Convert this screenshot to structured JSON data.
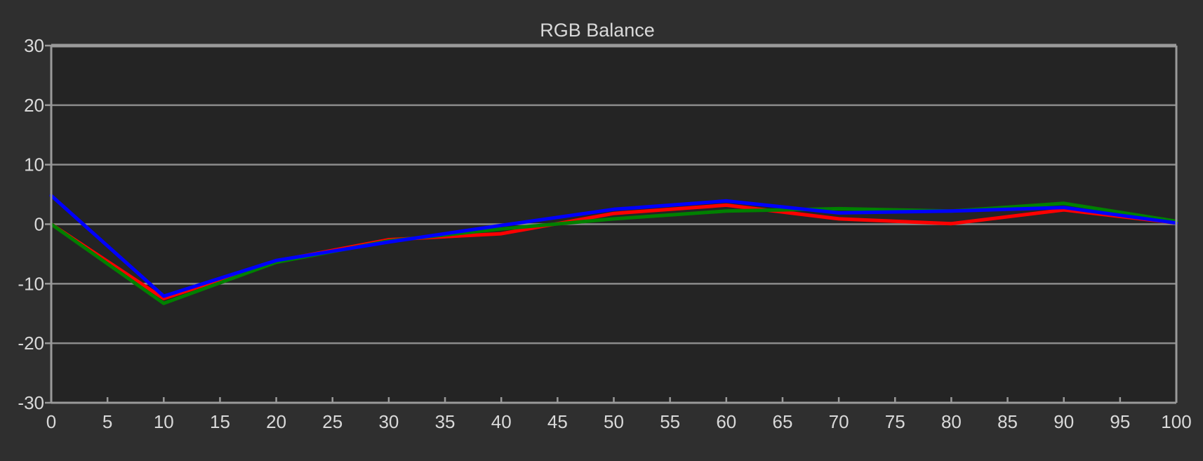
{
  "chart_data": {
    "type": "line",
    "title": "RGB Balance",
    "xlabel": "",
    "ylabel": "",
    "xlim": [
      0,
      100
    ],
    "ylim": [
      -30,
      30
    ],
    "x_ticks": [
      0,
      5,
      10,
      15,
      20,
      25,
      30,
      35,
      40,
      45,
      50,
      55,
      60,
      65,
      70,
      75,
      80,
      85,
      90,
      95,
      100
    ],
    "y_ticks": [
      30,
      20,
      10,
      0,
      -10,
      -20,
      -30
    ],
    "grid": "horizontal",
    "legend": "none",
    "background_color": "#2f2f2f",
    "plot_background_color": "#242424",
    "grid_color": "#8c8c8c",
    "series": [
      {
        "color": "#ff0000",
        "x": [
          0,
          10,
          20,
          30,
          40,
          50,
          60,
          70,
          80,
          90,
          100
        ],
        "y": [
          0,
          -12.5,
          -6.2,
          -2.6,
          -1.6,
          1.8,
          3.2,
          0.9,
          0.1,
          2.4,
          0.2
        ]
      },
      {
        "color": "#008000",
        "x": [
          0,
          10,
          20,
          30,
          40,
          50,
          60,
          70,
          80,
          90,
          100
        ],
        "y": [
          0,
          -13.3,
          -6.4,
          -2.8,
          -0.8,
          0.9,
          2.2,
          2.6,
          2.2,
          3.5,
          0.5
        ]
      },
      {
        "color": "#0000ff",
        "x": [
          0,
          10,
          20,
          30,
          40,
          50,
          60,
          70,
          80,
          90,
          100
        ],
        "y": [
          4.8,
          -12.1,
          -6.1,
          -3.0,
          -0.2,
          2.5,
          3.9,
          1.9,
          2.2,
          2.8,
          0.2
        ]
      }
    ]
  }
}
